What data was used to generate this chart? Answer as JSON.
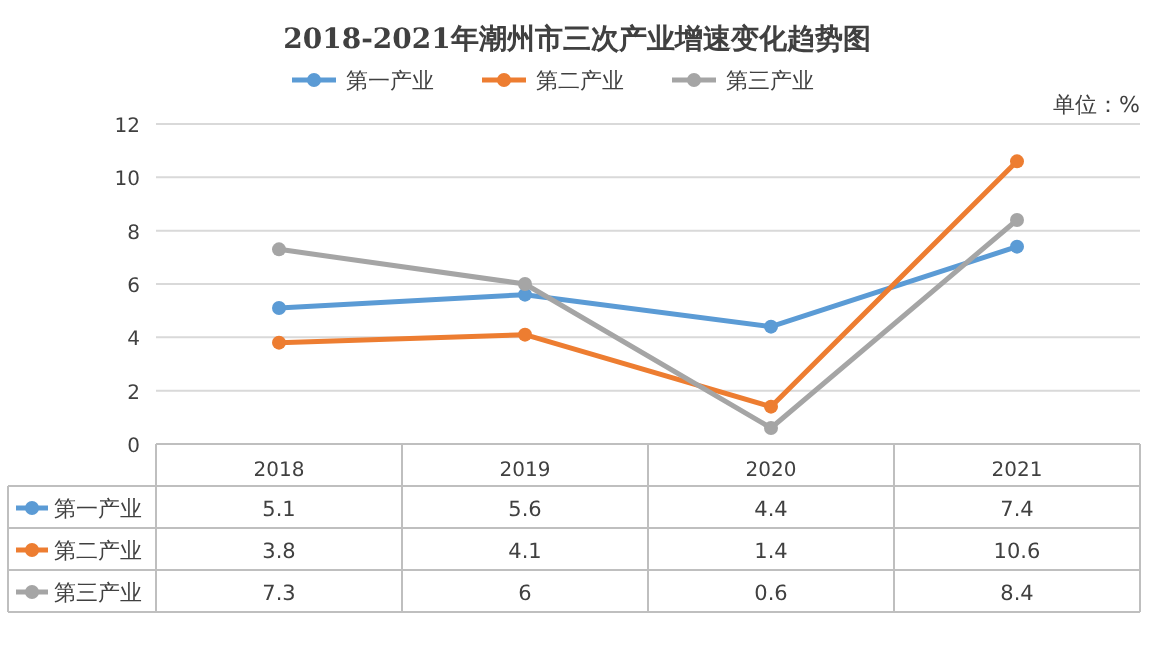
{
  "chart_data": {
    "type": "line",
    "title": "2018-2021年潮州市三次产业增速变化趋势图",
    "annotations": [
      "单位：%"
    ],
    "categories": [
      "2018",
      "2019",
      "2020",
      "2021"
    ],
    "series": [
      {
        "name": "第一产业",
        "color": "#5b9bd5",
        "values": [
          5.1,
          5.6,
          4.4,
          7.4
        ]
      },
      {
        "name": "第二产业",
        "color": "#ed7d31",
        "values": [
          3.8,
          4.1,
          1.4,
          10.6
        ]
      },
      {
        "name": "第三产业",
        "color": "#a5a5a5",
        "values": [
          7.3,
          6,
          0.6,
          8.4
        ]
      }
    ],
    "ylim": [
      0,
      12
    ],
    "yticks": [
      0,
      2,
      4,
      6,
      8,
      10,
      12
    ],
    "grid": "y",
    "legend": "top",
    "marker": "circle",
    "line_style": "solid",
    "data_labels": true
  }
}
